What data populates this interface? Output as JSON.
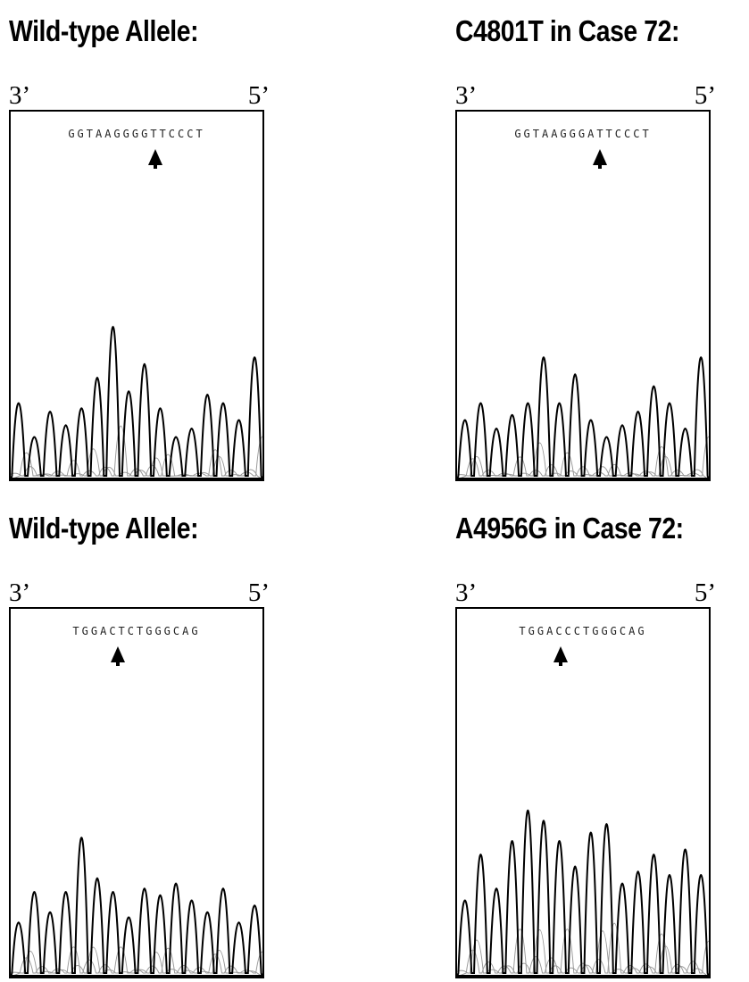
{
  "panels": [
    {
      "title": "Wild-type Allele:",
      "left_end": "3’",
      "right_end": "5’",
      "sequence": "GGTAAGGGGTTCCCT",
      "arrow_index": 8,
      "peaks": [
        0.45,
        0.25,
        0.4,
        0.32,
        0.42,
        0.6,
        0.9,
        0.52,
        0.68,
        0.42,
        0.25,
        0.3,
        0.5,
        0.45,
        0.35,
        0.72
      ]
    },
    {
      "title": "C4801T in Case 72:",
      "left_end": "3’",
      "right_end": "5’",
      "sequence": "GGTAAGGGATTCCCT",
      "arrow_index": 8,
      "peaks": [
        0.35,
        0.45,
        0.3,
        0.38,
        0.45,
        0.72,
        0.45,
        0.62,
        0.35,
        0.25,
        0.32,
        0.4,
        0.55,
        0.45,
        0.3,
        0.72
      ]
    },
    {
      "title": "Wild-type Allele:",
      "left_end": "3’",
      "right_end": "5’",
      "sequence": "TGGACTCTGGGCAG",
      "arrow_index": 5,
      "peaks": [
        0.32,
        0.5,
        0.38,
        0.5,
        0.82,
        0.58,
        0.5,
        0.35,
        0.52,
        0.48,
        0.55,
        0.45,
        0.38,
        0.52,
        0.32,
        0.42
      ]
    },
    {
      "title": "A4956G in Case 72:",
      "left_end": "3’",
      "right_end": "5’",
      "sequence": "TGGACCCTGGGCAG",
      "arrow_index": 5,
      "peaks": [
        0.45,
        0.72,
        0.52,
        0.8,
        0.98,
        0.92,
        0.8,
        0.65,
        0.85,
        0.9,
        0.55,
        0.62,
        0.72,
        0.6,
        0.75,
        0.6
      ]
    }
  ],
  "colors": {
    "trace_dark": "#000000",
    "trace_light": "#9a9a9a",
    "line": "#000000"
  }
}
